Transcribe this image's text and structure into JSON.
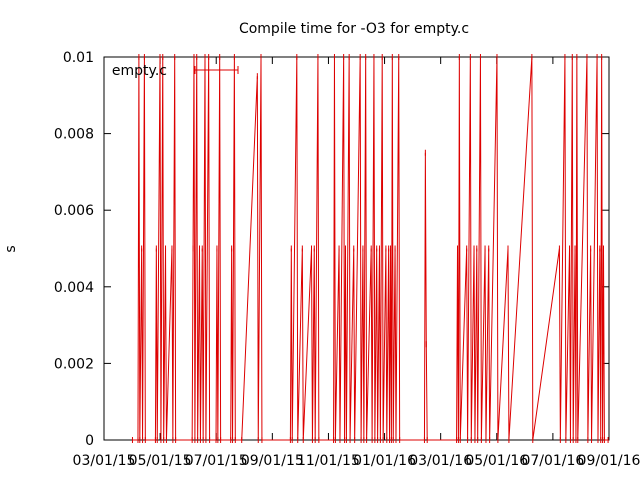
{
  "chart_data": {
    "type": "line",
    "title": "Compile time for -O3 for empty.c",
    "xlabel": "",
    "ylabel": "s",
    "legend_placement": "top-left",
    "grid": false,
    "colors": {
      "series": "#dd0000",
      "axis": "#000000",
      "background": "#ffffff"
    },
    "xlim": [
      "2015-03-01",
      "2016-09-01"
    ],
    "ylim": [
      0,
      0.01
    ],
    "x_ticks": [
      "03/01/15",
      "05/01/15",
      "07/01/15",
      "09/01/15",
      "11/01/15",
      "01/01/16",
      "03/01/16",
      "05/01/16",
      "07/01/16",
      "09/01/16"
    ],
    "y_ticks": [
      "0",
      "0.002",
      "0.004",
      "0.006",
      "0.008",
      "0.01"
    ],
    "series": [
      {
        "name": "empty.c",
        "points": [
          [
            "2015-04-01",
            0
          ],
          [
            "2015-04-07",
            0
          ],
          [
            "2015-04-08",
            0.01
          ],
          [
            "2015-04-09",
            0
          ],
          [
            "2015-04-11",
            0.005
          ],
          [
            "2015-04-12",
            0
          ],
          [
            "2015-04-14",
            0.01
          ],
          [
            "2015-04-15",
            0
          ],
          [
            "2015-04-26",
            0
          ],
          [
            "2015-04-27",
            0.005
          ],
          [
            "2015-04-28",
            0
          ],
          [
            "2015-05-01",
            0.01
          ],
          [
            "2015-05-02",
            0
          ],
          [
            "2015-05-04",
            0.01
          ],
          [
            "2015-05-05",
            0
          ],
          [
            "2015-05-07",
            0.005
          ],
          [
            "2015-05-08",
            0
          ],
          [
            "2015-05-14",
            0.005
          ],
          [
            "2015-05-15",
            0
          ],
          [
            "2015-05-17",
            0.01
          ],
          [
            "2015-05-18",
            0
          ],
          [
            "2015-06-05",
            0
          ],
          [
            "2015-06-06",
            0.005
          ],
          [
            "2015-06-07",
            0.01
          ],
          [
            "2015-06-08",
            0
          ],
          [
            "2015-06-10",
            0.01
          ],
          [
            "2015-06-11",
            0
          ],
          [
            "2015-06-13",
            0.005
          ],
          [
            "2015-06-14",
            0
          ],
          [
            "2015-06-16",
            0.005
          ],
          [
            "2015-06-17",
            0
          ],
          [
            "2015-06-19",
            0.01
          ],
          [
            "2015-06-20",
            0
          ],
          [
            "2015-06-23",
            0.01
          ],
          [
            "2015-06-24",
            0
          ],
          [
            "2015-07-01",
            0
          ],
          [
            "2015-07-02",
            0.005
          ],
          [
            "2015-07-03",
            0
          ],
          [
            "2015-07-05",
            0.01
          ],
          [
            "2015-07-06",
            0
          ],
          [
            "2015-07-17",
            0
          ],
          [
            "2015-07-18",
            0.005
          ],
          [
            "2015-07-19",
            0
          ],
          [
            "2015-07-21",
            0.01
          ],
          [
            "2015-07-22",
            0
          ],
          [
            "2015-07-29",
            0
          ],
          [
            "2015-08-15",
            0.0095
          ],
          [
            "2015-08-16",
            0
          ],
          [
            "2015-08-19",
            0.01
          ],
          [
            "2015-08-20",
            0
          ],
          [
            "2015-09-20",
            0
          ],
          [
            "2015-09-21",
            0.005
          ],
          [
            "2015-09-22",
            0
          ],
          [
            "2015-09-27",
            0.01
          ],
          [
            "2015-09-28",
            0
          ],
          [
            "2015-10-03",
            0.005
          ],
          [
            "2015-10-04",
            0
          ],
          [
            "2015-10-13",
            0.005
          ],
          [
            "2015-10-14",
            0
          ],
          [
            "2015-10-16",
            0.005
          ],
          [
            "2015-10-17",
            0
          ],
          [
            "2015-10-20",
            0.01
          ],
          [
            "2015-10-21",
            0
          ],
          [
            "2015-11-06",
            0
          ],
          [
            "2015-11-07",
            0.01
          ],
          [
            "2015-11-08",
            0
          ],
          [
            "2015-11-12",
            0.005
          ],
          [
            "2015-11-13",
            0
          ],
          [
            "2015-11-17",
            0.01
          ],
          [
            "2015-11-18",
            0
          ],
          [
            "2015-11-19",
            0.005
          ],
          [
            "2015-11-20",
            0
          ],
          [
            "2015-11-23",
            0.01
          ],
          [
            "2015-11-24",
            0
          ],
          [
            "2015-11-28",
            0.005
          ],
          [
            "2015-11-29",
            0
          ],
          [
            "2015-12-05",
            0.01
          ],
          [
            "2015-12-06",
            0
          ],
          [
            "2015-12-08",
            0.005
          ],
          [
            "2015-12-09",
            0
          ],
          [
            "2015-12-11",
            0.01
          ],
          [
            "2015-12-12",
            0
          ],
          [
            "2015-12-17",
            0.005
          ],
          [
            "2015-12-18",
            0
          ],
          [
            "2015-12-20",
            0.01
          ],
          [
            "2015-12-21",
            0
          ],
          [
            "2015-12-23",
            0.005
          ],
          [
            "2015-12-24",
            0
          ],
          [
            "2015-12-26",
            0.005
          ],
          [
            "2015-12-27",
            0
          ],
          [
            "2015-12-29",
            0.01
          ],
          [
            "2015-12-30",
            0
          ],
          [
            "2016-01-02",
            0.005
          ],
          [
            "2016-01-03",
            0
          ],
          [
            "2016-01-05",
            0.005
          ],
          [
            "2016-01-06",
            0
          ],
          [
            "2016-01-07",
            0.005
          ],
          [
            "2016-01-08",
            0
          ],
          [
            "2016-01-09",
            0.01
          ],
          [
            "2016-01-10",
            0
          ],
          [
            "2016-01-12",
            0.005
          ],
          [
            "2016-01-13",
            0
          ],
          [
            "2016-01-16",
            0.01
          ],
          [
            "2016-01-17",
            0
          ],
          [
            "2016-02-13",
            0
          ],
          [
            "2016-02-14",
            0.0075
          ],
          [
            "2016-02-15",
            0.0025
          ],
          [
            "2016-02-16",
            0
          ],
          [
            "2016-03-19",
            0
          ],
          [
            "2016-03-20",
            0.005
          ],
          [
            "2016-03-21",
            0
          ],
          [
            "2016-03-22",
            0.01
          ],
          [
            "2016-03-23",
            0
          ],
          [
            "2016-03-30",
            0.005
          ],
          [
            "2016-03-31",
            0
          ],
          [
            "2016-04-03",
            0.01
          ],
          [
            "2016-04-04",
            0
          ],
          [
            "2016-04-07",
            0.005
          ],
          [
            "2016-04-08",
            0
          ],
          [
            "2016-04-10",
            0.005
          ],
          [
            "2016-04-11",
            0
          ],
          [
            "2016-04-14",
            0.01
          ],
          [
            "2016-04-15",
            0
          ],
          [
            "2016-04-19",
            0.005
          ],
          [
            "2016-04-20",
            0
          ],
          [
            "2016-04-23",
            0.005
          ],
          [
            "2016-04-24",
            0
          ],
          [
            "2016-05-02",
            0.01
          ],
          [
            "2016-05-03",
            0
          ],
          [
            "2016-05-14",
            0.005
          ],
          [
            "2016-05-15",
            0
          ],
          [
            "2016-06-09",
            0.01
          ],
          [
            "2016-06-10",
            0
          ],
          [
            "2016-07-09",
            0.005
          ],
          [
            "2016-07-10",
            0
          ],
          [
            "2016-07-15",
            0.01
          ],
          [
            "2016-07-16",
            0
          ],
          [
            "2016-07-20",
            0.005
          ],
          [
            "2016-07-21",
            0
          ],
          [
            "2016-07-23",
            0.01
          ],
          [
            "2016-07-24",
            0
          ],
          [
            "2016-07-26",
            0.005
          ],
          [
            "2016-07-27",
            0
          ],
          [
            "2016-07-28",
            0.01
          ],
          [
            "2016-07-29",
            0
          ],
          [
            "2016-08-08",
            0.01
          ],
          [
            "2016-08-09",
            0
          ],
          [
            "2016-08-12",
            0.005
          ],
          [
            "2016-08-13",
            0
          ],
          [
            "2016-08-19",
            0.01
          ],
          [
            "2016-08-20",
            0
          ],
          [
            "2016-08-22",
            0.005
          ],
          [
            "2016-08-23",
            0
          ],
          [
            "2016-08-24",
            0.01
          ],
          [
            "2016-08-25",
            0
          ],
          [
            "2016-08-26",
            0.005
          ],
          [
            "2016-08-27",
            0
          ],
          [
            "2016-08-31",
            0
          ]
        ]
      }
    ]
  }
}
